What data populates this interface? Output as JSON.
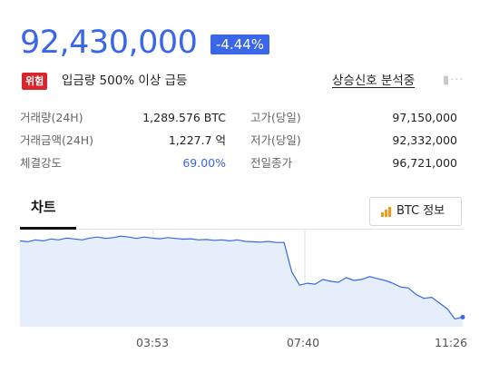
{
  "quote": {
    "price": "92,430,000",
    "change": "-4.44%"
  },
  "alert": {
    "badge": "위험",
    "text": "입금량 500% 이상 급등",
    "signal_link": "상승신호 분석중"
  },
  "stats": {
    "left": [
      {
        "label": "거래량(24H)",
        "value": "1,289.576 BTC"
      },
      {
        "label": "거래금액(24H)",
        "value": "1,227.7 억"
      },
      {
        "label": "체결강도",
        "value": "69.00%"
      }
    ],
    "right": [
      {
        "label": "고가(당일)",
        "value": "97,150,000"
      },
      {
        "label": "저가(당일)",
        "value": "92,332,000"
      },
      {
        "label": "전일종가",
        "value": "96,721,000"
      }
    ]
  },
  "tabs": {
    "chart": "차트",
    "btc_info": "BTC 정보"
  },
  "colors": {
    "accent": "#3a66e8",
    "danger": "#d9262c",
    "info_icon": "#f39a1a",
    "chart_line": "#3a66e8",
    "chart_fill": "#e6eefb"
  },
  "icons": {
    "more": "dots-icon",
    "info": "bar-chart-icon"
  },
  "chart_data": {
    "type": "area",
    "x_ticks": [
      "03:53",
      "07:40",
      "11:26"
    ],
    "ylim": [
      92332000,
      97150000
    ],
    "grid": false,
    "values": [
      96650000,
      96600000,
      96700000,
      96650000,
      96750000,
      96700000,
      96800000,
      96750000,
      96700000,
      96800000,
      96850000,
      96780000,
      96820000,
      96900000,
      96850000,
      96780000,
      96850000,
      96800000,
      96760000,
      96820000,
      96780000,
      96740000,
      96760000,
      96700000,
      96720000,
      96680000,
      96700000,
      96650000,
      96700000,
      96620000,
      96600000,
      96580000,
      96620000,
      96560000,
      96560000,
      95000000,
      94300000,
      94400000,
      94350000,
      94600000,
      94500000,
      94450000,
      94700000,
      94550000,
      94600000,
      94750000,
      94650000,
      94550000,
      94400000,
      94200000,
      94150000,
      93800000,
      93600000,
      93650000,
      93350000,
      93050000,
      92500000,
      92600000
    ]
  }
}
